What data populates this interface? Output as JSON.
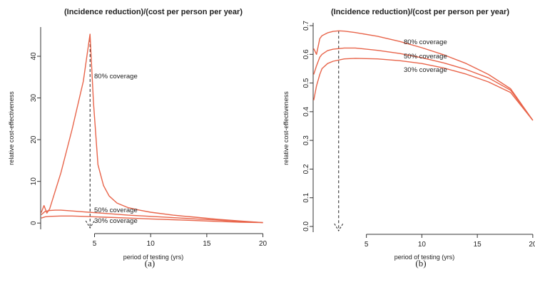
{
  "colors": {
    "series": "#e8644a",
    "axis": "#333333",
    "marker": "#222222"
  },
  "chart_data": [
    {
      "type": "line",
      "caption": "(a)",
      "title": "(Incidence reduction)/(cost per person per year)",
      "xlabel": "period of testing (yrs)",
      "ylabel": "relative cost-effectiveness",
      "xlim": [
        0.2,
        20.6
      ],
      "ylim": [
        -1.5,
        47
      ],
      "xticks": [
        5,
        10,
        15,
        20
      ],
      "yticks": [
        0,
        10,
        20,
        30,
        40
      ],
      "grid": false,
      "optimum_x": 4.6,
      "series": [
        {
          "name": "80% coverage",
          "x": [
            0.25,
            0.5,
            0.75,
            1,
            2,
            3,
            4,
            4.6,
            4.9,
            5.3,
            5.8,
            6.3,
            7,
            8,
            9,
            10,
            12,
            14,
            16,
            18,
            20
          ],
          "y": [
            2.5,
            4.2,
            2.4,
            3.4,
            12,
            22.5,
            34,
            45.3,
            29,
            14,
            9,
            6.5,
            4.8,
            3.7,
            3.1,
            2.6,
            1.9,
            1.4,
            0.9,
            0.5,
            0.1
          ]
        },
        {
          "name": "50% coverage",
          "x": [
            0.25,
            0.6,
            1,
            1.5,
            2,
            3,
            4,
            5,
            6,
            8,
            10,
            12,
            14,
            16,
            18,
            20
          ],
          "y": [
            2.0,
            2.8,
            3.0,
            3.1,
            3.1,
            2.9,
            2.7,
            2.5,
            2.3,
            1.9,
            1.6,
            1.3,
            1.0,
            0.7,
            0.4,
            0.1
          ]
        },
        {
          "name": "30% coverage",
          "x": [
            0.25,
            0.6,
            1,
            2,
            3,
            4,
            5,
            6,
            8,
            10,
            12,
            14,
            16,
            18,
            20
          ],
          "y": [
            1.2,
            1.5,
            1.6,
            1.7,
            1.7,
            1.6,
            1.5,
            1.4,
            1.2,
            1.0,
            0.8,
            0.6,
            0.4,
            0.2,
            0.1
          ]
        }
      ]
    },
    {
      "type": "line",
      "caption": "(b)",
      "title": "(Incidence reduction)/(cost per person per year)",
      "xlabel": "period of testing (yrs)",
      "ylabel": "relative cost-effectiveness",
      "xlim": [
        0.2,
        20.2
      ],
      "ylim": [
        -0.02,
        0.71
      ],
      "xticks": [
        5,
        10,
        15,
        20
      ],
      "yticks": [
        0.0,
        0.1,
        0.2,
        0.3,
        0.4,
        0.5,
        0.6,
        0.7
      ],
      "grid": false,
      "optimum_x": 2.5,
      "series": [
        {
          "name": "80% coverage",
          "x": [
            0.25,
            0.5,
            0.8,
            1,
            1.5,
            2,
            2.5,
            3,
            4,
            6,
            8,
            10,
            12,
            14,
            16,
            18,
            20
          ],
          "y": [
            0.62,
            0.6,
            0.655,
            0.665,
            0.675,
            0.68,
            0.682,
            0.681,
            0.676,
            0.663,
            0.645,
            0.623,
            0.598,
            0.568,
            0.53,
            0.48,
            0.37
          ]
        },
        {
          "name": "50% coverage",
          "x": [
            0.25,
            0.5,
            0.8,
            1,
            1.5,
            2,
            3,
            4,
            6,
            8,
            10,
            12,
            14,
            16,
            18,
            20
          ],
          "y": [
            0.53,
            0.56,
            0.59,
            0.6,
            0.613,
            0.618,
            0.622,
            0.622,
            0.614,
            0.603,
            0.588,
            0.57,
            0.547,
            0.518,
            0.475,
            0.37
          ]
        },
        {
          "name": "30% coverage",
          "x": [
            0.25,
            0.5,
            0.8,
            1,
            1.5,
            2,
            3,
            4,
            6,
            8,
            10,
            12,
            14,
            16,
            18,
            20
          ],
          "y": [
            0.44,
            0.49,
            0.53,
            0.55,
            0.568,
            0.576,
            0.584,
            0.586,
            0.584,
            0.578,
            0.568,
            0.552,
            0.531,
            0.504,
            0.467,
            0.37
          ]
        }
      ]
    }
  ]
}
